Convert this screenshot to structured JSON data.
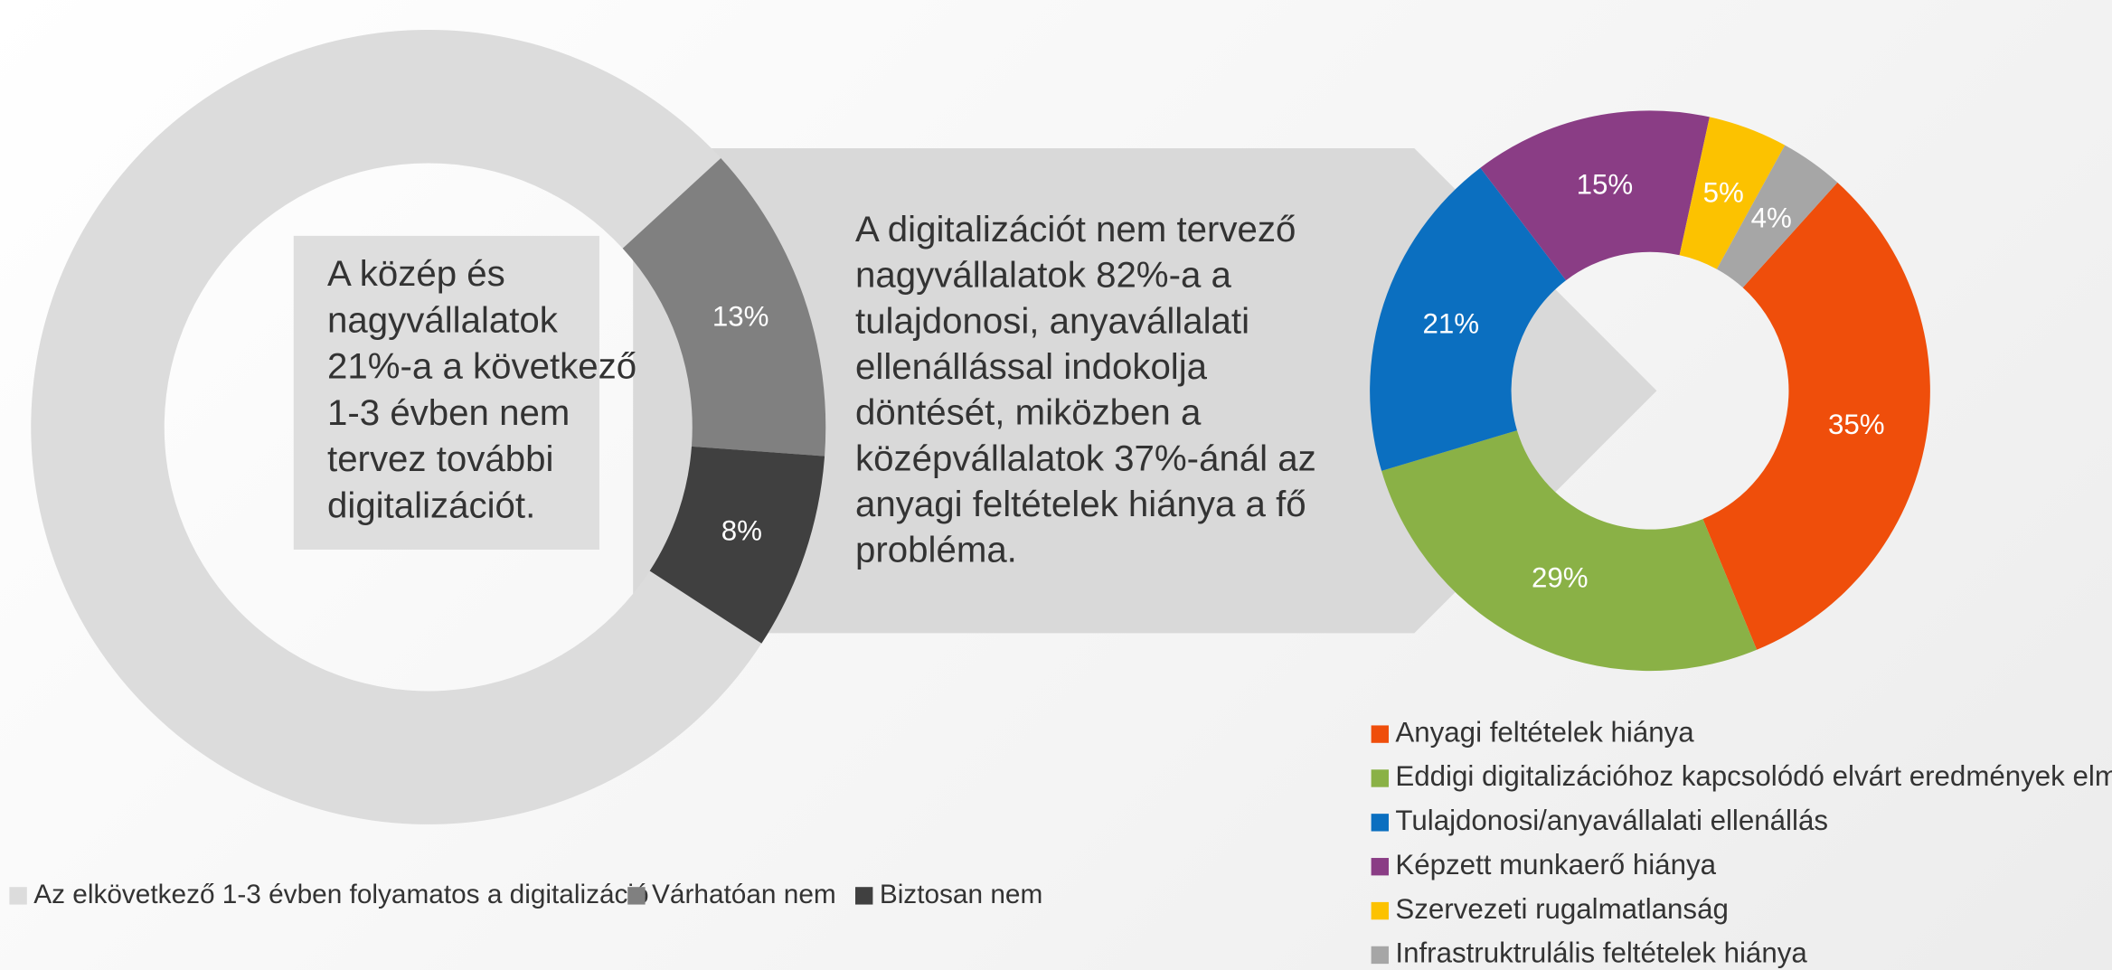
{
  "chart_data": [
    {
      "type": "donut",
      "annotation": [
        "A közép és",
        "nagyvállalatok",
        "21%-a a következő",
        "1-3 évben nem",
        "tervez további",
        "digitalizációt."
      ],
      "categories": [
        "Az elkövetkező 1-3 évben folyamatos a digitalizáció",
        "Várhatóan nem",
        "Biztosan nem"
      ],
      "values": [
        79,
        13,
        8
      ],
      "value_labels": [
        null,
        "13%",
        "8%"
      ],
      "colors": [
        "#dcdcdc",
        "#808080",
        "#404040"
      ],
      "legend": "bottom"
    },
    {
      "type": "donut",
      "annotation": [
        "A digitalizációt nem tervező",
        "nagyvállalatok  82%-a  a",
        "tulajdonosi, anyavállalati",
        "ellenállással indokolja",
        "döntését, miközben a",
        "középvállalatok 37%-ánál az",
        "anyagi feltételek hiánya a fő",
        "probléma."
      ],
      "categories": [
        "Anyagi feltételek  hiánya",
        "Eddigi digitalizációhoz  kapcsolódó elvárt eredmények elmaradása",
        "Tulajdonosi/anyavállalati  ellenállás",
        "Képzett munkaerő hiánya",
        "Szervezeti rugalmatlanság",
        "Infrastruktrulális feltételek  hiánya"
      ],
      "values": [
        35,
        29,
        21,
        15,
        5,
        4
      ],
      "value_labels": [
        "35%",
        "29%",
        "21%",
        "15%",
        "5%",
        "4%"
      ],
      "colors": [
        "#ef4e0b",
        "#8ab146",
        "#0b6fc0",
        "#8a3d85",
        "#fcc200",
        "#a6a6a6"
      ],
      "legend": "bottom-right"
    }
  ]
}
